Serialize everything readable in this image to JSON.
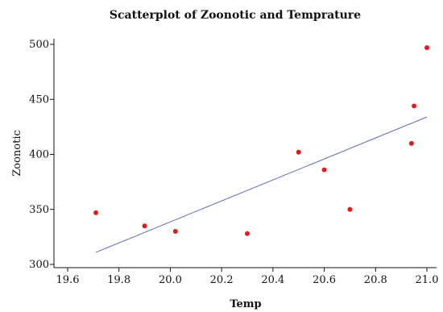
{
  "chart_data": {
    "type": "scatter",
    "title": "Scatterplot of Zoonotic and Temprature",
    "xlabel": "Temp",
    "ylabel": "Zoonotic",
    "xlim": [
      19.6,
      21.06
    ],
    "ylim": [
      298,
      508
    ],
    "x_ticks": [
      19.6,
      19.8,
      20.0,
      20.2,
      20.4,
      20.6,
      20.8,
      21.0
    ],
    "x_tick_labels": [
      "19.6",
      "19.8",
      "20.0",
      "20.2",
      "20.4",
      "20.6",
      "20.8",
      "21.0"
    ],
    "y_ticks": [
      300,
      350,
      400,
      450,
      500
    ],
    "y_tick_labels": [
      "300",
      "350",
      "400",
      "450",
      "500"
    ],
    "grid": false,
    "series": [
      {
        "x": [
          19.71,
          19.9,
          20.02,
          20.3,
          20.5,
          20.6,
          20.7,
          20.94,
          20.95,
          21.0
        ],
        "y": [
          347,
          335,
          330,
          328,
          402,
          386,
          350,
          410,
          444,
          497
        ],
        "color": "#e31a1c"
      }
    ],
    "fit_line": {
      "x": [
        19.71,
        21.0
      ],
      "y": [
        311,
        434
      ],
      "color": "#4a5bb3"
    }
  }
}
